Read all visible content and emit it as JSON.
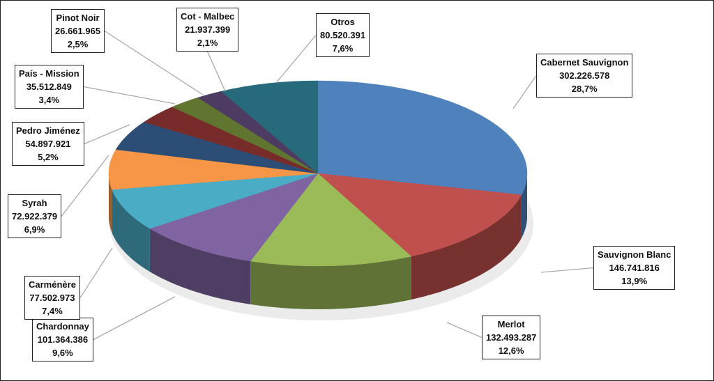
{
  "chart_data": {
    "type": "pie",
    "style": "3d",
    "start_angle": "12 o'clock",
    "direction": "clockwise",
    "slices": [
      {
        "name": "Cabernet Sauvignon",
        "value_label": "302.226.578",
        "value": 302226578,
        "pct_label": "28,7%",
        "color": "#4F81BD"
      },
      {
        "name": "Sauvignon Blanc",
        "value_label": "146.741.816",
        "value": 146741816,
        "pct_label": "13,9%",
        "color": "#C0504D"
      },
      {
        "name": "Merlot",
        "value_label": "132.493.287",
        "value": 132493287,
        "pct_label": "12,6%",
        "color": "#9BBB59"
      },
      {
        "name": "Chardonnay",
        "value_label": "101.364.386",
        "value": 101364386,
        "pct_label": "9,6%",
        "color": "#8064A2"
      },
      {
        "name": "Carménère",
        "value_label": "77.502.973",
        "value": 77502973,
        "pct_label": "7,4%",
        "color": "#4BACC6"
      },
      {
        "name": "Syrah",
        "value_label": "72.922.379",
        "value": 72922379,
        "pct_label": "6,9%",
        "color": "#F79646"
      },
      {
        "name": "Pedro Jiménez",
        "value_label": "54.897.921",
        "value": 54897921,
        "pct_label": "5,2%",
        "color": "#2C4D75"
      },
      {
        "name": "País - Mission",
        "value_label": "35.512.849",
        "value": 35512849,
        "pct_label": "3,4%",
        "color": "#772C2A"
      },
      {
        "name": "Pinot Noir",
        "value_label": "26.661.965",
        "value": 26661965,
        "pct_label": "2,5%",
        "color": "#5F7530"
      },
      {
        "name": "Cot - Malbec",
        "value_label": "21.937.399",
        "value": 21937399,
        "pct_label": "2,1%",
        "color": "#4D3B62"
      },
      {
        "name": "Otros",
        "value_label": "80.520.391",
        "value": 80520391,
        "pct_label": "7,6%",
        "color": "#276A7C"
      }
    ]
  }
}
